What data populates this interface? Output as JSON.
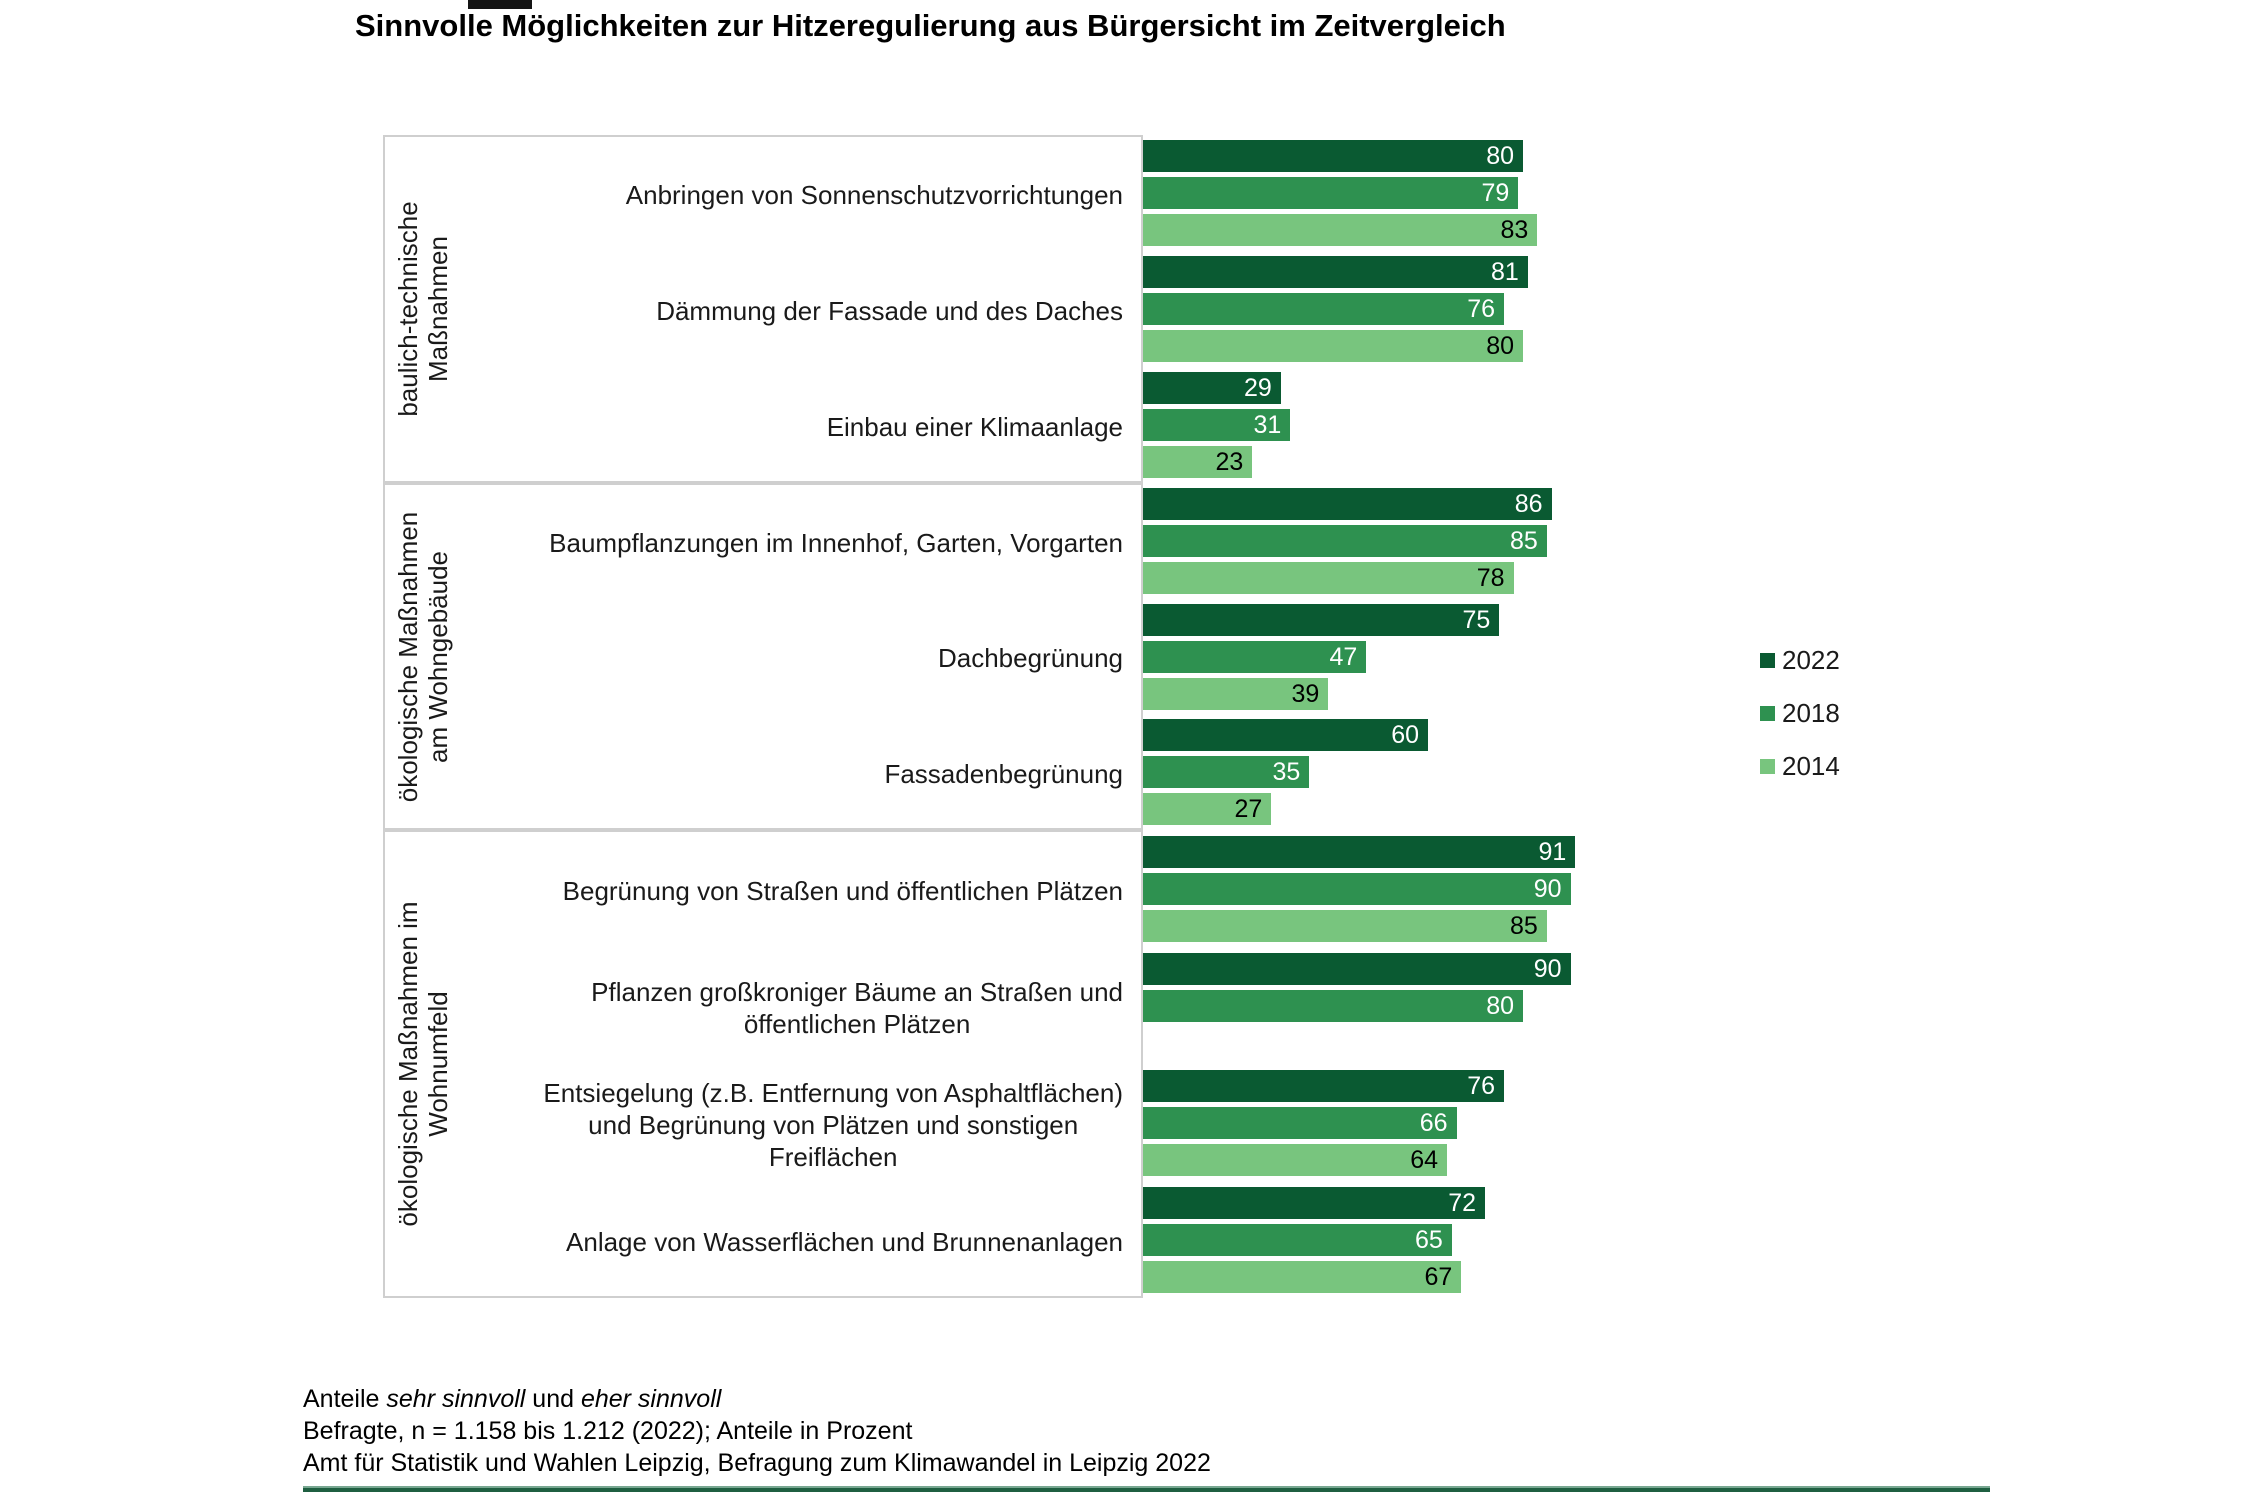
{
  "page": {
    "title": "Sinnvolle Möglichkeiten zur Hitzeregulierung aus Bürgersicht im Zeitvergleich"
  },
  "chart_data": {
    "type": "bar",
    "orientation": "horizontal",
    "value_unit": "percent",
    "xlim": [
      0,
      100
    ],
    "grid": false,
    "value_labels": "inside-end",
    "legend": {
      "position": "right",
      "entries": [
        {
          "label": "2022",
          "color": "#0A5A32",
          "value_label_color": "#ffffff"
        },
        {
          "label": "2018",
          "color": "#2E9150",
          "value_label_color": "#ffffff"
        },
        {
          "label": "2014",
          "color": "#78C57E",
          "value_label_color": "#000000"
        }
      ]
    },
    "groups": [
      {
        "label": "baulich-technische\nMaßnahmen",
        "items": [
          {
            "label": "Anbringen von Sonnenschutzvorrichtungen",
            "values": [
              80,
              79,
              83
            ]
          },
          {
            "label": "Dämmung der Fassade und des Daches",
            "values": [
              81,
              76,
              80
            ]
          },
          {
            "label": "Einbau einer Klimaanlage",
            "values": [
              29,
              31,
              23
            ]
          }
        ]
      },
      {
        "label": "ökologische Maßnahmen\nam Wohngebäude",
        "items": [
          {
            "label": "Baumpflanzungen im Innenhof, Garten, Vorgarten",
            "values": [
              86,
              85,
              78
            ]
          },
          {
            "label": "Dachbegrünung",
            "values": [
              75,
              47,
              39
            ]
          },
          {
            "label": "Fassadenbegrünung",
            "values": [
              60,
              35,
              27
            ]
          }
        ]
      },
      {
        "label": "ökologische Maßnahmen im\nWohnumfeld",
        "items": [
          {
            "label": "Begrünung von Straßen und öffentlichen Plätzen",
            "values": [
              91,
              90,
              85
            ]
          },
          {
            "label": "Pflanzen großkroniger Bäume an Straßen und\nöffentlichen Plätzen",
            "values": [
              90,
              80,
              null
            ]
          },
          {
            "label": "Entsiegelung (z.B. Entfernung von Asphaltflächen)\nund Begrünung von Plätzen und sonstigen\nFreiflächen",
            "values": [
              76,
              66,
              64
            ]
          },
          {
            "label": "Anlage von Wasserflächen und Brunnenanlagen",
            "values": [
              72,
              65,
              67
            ]
          }
        ]
      }
    ]
  },
  "footer": {
    "line1_prefix": "Anteile ",
    "line1_italic1": "sehr sinnvoll",
    "line1_mid": " und ",
    "line1_italic2": "eher sinnvoll",
    "line2": "Befragte, n = 1.158 bis 1.212 (2022); Anteile in Prozent",
    "line3": "Amt für Statistik und Wahlen Leipzig, Befragung zum Klimawandel in Leipzig 2022"
  }
}
